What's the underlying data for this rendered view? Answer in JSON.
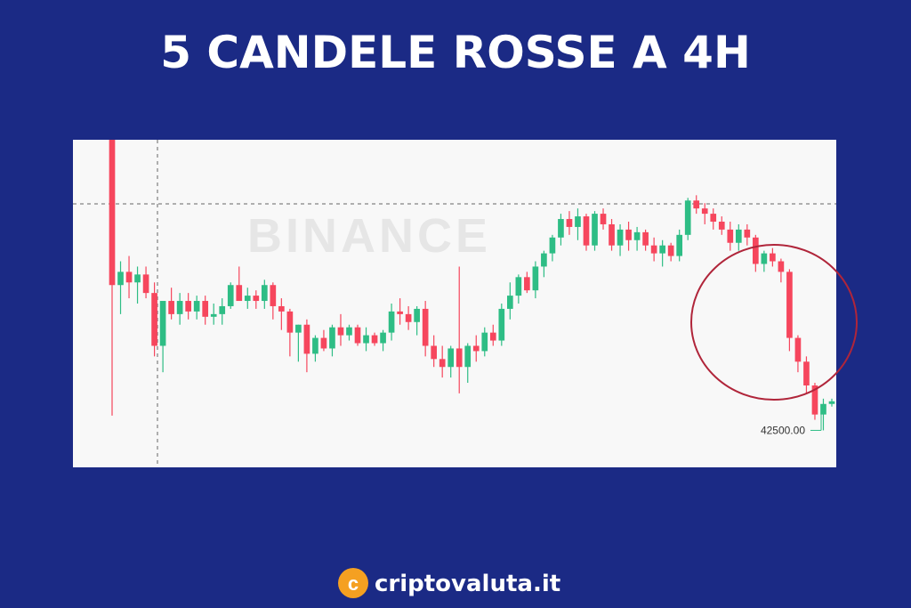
{
  "chart_data": {
    "type": "candlestick",
    "title": "5 CANDELE ROSSE A 4H",
    "watermark": "BINANCE",
    "brand": "criptovaluta.it",
    "up_color": "#2ebd85",
    "down_color": "#f6465d",
    "ylim": [
      41800,
      48000
    ],
    "annotation": {
      "value": 42500,
      "label": "42500.00"
    },
    "open": [
      48000,
      45250,
      45500,
      45300,
      45450,
      45100,
      44100,
      44950,
      44700,
      44950,
      44750,
      44950,
      44650,
      44700,
      44850,
      45250,
      44950,
      45050,
      44950,
      45250,
      44850,
      44750,
      44350,
      44500,
      43950,
      44250,
      44050,
      44450,
      44300,
      44450,
      44150,
      44300,
      44150,
      44350,
      44750,
      44700,
      44550,
      44800,
      44100,
      43850,
      43700,
      44050,
      43700,
      44100,
      44000,
      44350,
      44200,
      44800,
      45050,
      45400,
      45150,
      45600,
      45850,
      46150,
      46500,
      46350,
      46550,
      46000,
      46600,
      46400,
      46000,
      46300,
      46100,
      46250,
      46000,
      45850,
      46000,
      45800,
      46200,
      46850,
      46700,
      46600,
      46450,
      46300,
      46050,
      46300,
      46150,
      45650,
      45850,
      45700,
      45500,
      44250,
      43800,
      43350,
      42800,
      43000
    ],
    "high": [
      48000,
      45700,
      45800,
      45600,
      45600,
      45300,
      44900,
      45200,
      45100,
      45100,
      45050,
      45050,
      44900,
      45000,
      45300,
      45600,
      45200,
      45150,
      45350,
      45300,
      45000,
      44800,
      44500,
      44600,
      44300,
      44400,
      44500,
      44700,
      44500,
      44500,
      44450,
      44350,
      44400,
      44900,
      45000,
      44850,
      44850,
      44950,
      44300,
      44100,
      44100,
      45600,
      44150,
      44300,
      44450,
      44500,
      44900,
      45300,
      45450,
      45500,
      45700,
      45900,
      46200,
      46600,
      46650,
      46700,
      46600,
      46650,
      46700,
      46500,
      46400,
      46450,
      46350,
      46300,
      46150,
      46100,
      46050,
      46300,
      46900,
      46950,
      46800,
      46700,
      46550,
      46450,
      46400,
      46400,
      46200,
      45900,
      45950,
      45750,
      45550,
      44300,
      43900,
      43400,
      43100,
      43100
    ],
    "low": [
      42780,
      44700,
      45000,
      44900,
      45000,
      43900,
      43600,
      44600,
      44500,
      44600,
      44600,
      44500,
      44500,
      44500,
      44800,
      45000,
      44800,
      44800,
      44800,
      44600,
      44400,
      43900,
      43800,
      43600,
      43800,
      44000,
      43900,
      44100,
      44200,
      44100,
      44000,
      44100,
      44000,
      44200,
      44500,
      44400,
      44300,
      43900,
      43700,
      43500,
      43500,
      43200,
      43400,
      43800,
      43900,
      44100,
      44100,
      44600,
      44900,
      45100,
      45000,
      45400,
      45700,
      46000,
      46200,
      46100,
      45900,
      45900,
      46300,
      45900,
      45800,
      45900,
      45900,
      45900,
      45700,
      45600,
      45700,
      45700,
      46100,
      46600,
      46400,
      46300,
      46200,
      45900,
      45900,
      46000,
      45500,
      45500,
      45600,
      45300,
      44000,
      43600,
      43200,
      42700,
      42500,
      42950
    ],
    "close": [
      45250,
      45500,
      45300,
      45450,
      45100,
      44100,
      44950,
      44700,
      44950,
      44750,
      44950,
      44650,
      44700,
      44850,
      45250,
      44950,
      45050,
      44950,
      45250,
      44850,
      44750,
      44350,
      44500,
      43950,
      44250,
      44050,
      44450,
      44300,
      44450,
      44150,
      44300,
      44150,
      44350,
      44750,
      44700,
      44550,
      44800,
      44100,
      43850,
      43700,
      44050,
      43700,
      44100,
      44000,
      44350,
      44200,
      44800,
      45050,
      45400,
      45150,
      45600,
      45850,
      46150,
      46500,
      46350,
      46550,
      46000,
      46600,
      46400,
      46000,
      46300,
      46100,
      46250,
      46000,
      45850,
      46000,
      45800,
      46200,
      46850,
      46700,
      46600,
      46450,
      46300,
      46050,
      46300,
      46150,
      45650,
      45850,
      45700,
      45500,
      44250,
      43800,
      43350,
      42800,
      43000,
      43050
    ]
  }
}
